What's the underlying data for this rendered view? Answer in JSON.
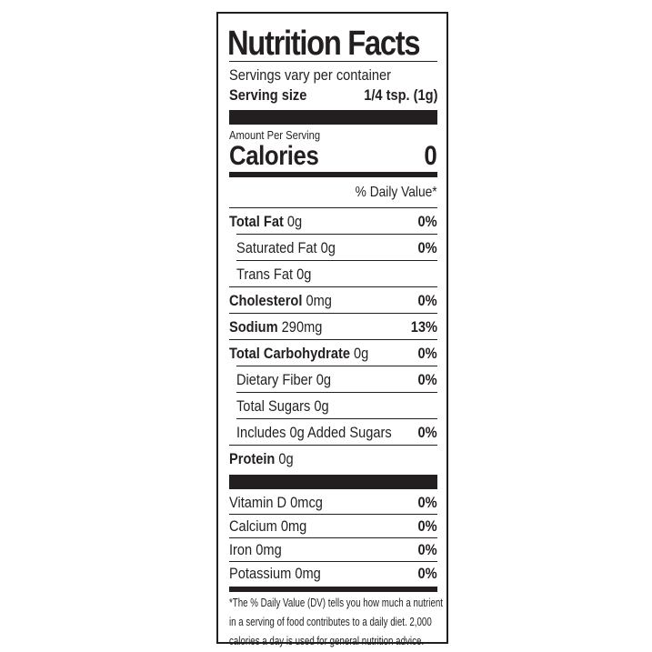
{
  "label": {
    "title": "Nutrition Facts",
    "servings": "Servings vary per container",
    "serving_size_label": "Serving size",
    "serving_size_value": "1/4 tsp. (1g)",
    "amount_per_serving": "Amount Per Serving",
    "calories_label": "Calories",
    "calories_value": "0",
    "daily_value_header": "% Daily Value*",
    "nutrients": [
      {
        "bold": "Total Fat",
        "amount": " 0g",
        "dv": "0%"
      },
      {
        "bold": "",
        "amount": "Saturated Fat 0g",
        "dv": "0%"
      },
      {
        "bold": "",
        "amount": "Trans Fat 0g",
        "dv": ""
      },
      {
        "bold": "Cholesterol",
        "amount": " 0mg",
        "dv": "0%"
      },
      {
        "bold": "Sodium",
        "amount": " 290mg",
        "dv": "13%"
      },
      {
        "bold": "Total Carbohydrate",
        "amount": " 0g",
        "dv": "0%"
      },
      {
        "bold": "",
        "amount": "Dietary Fiber 0g",
        "dv": "0%"
      },
      {
        "bold": "",
        "amount": "Total Sugars 0g",
        "dv": ""
      },
      {
        "bold": "",
        "amount": "Includes 0g Added Sugars",
        "dv": "0%"
      },
      {
        "bold": "Protein",
        "amount": " 0g",
        "dv": ""
      }
    ],
    "vitamins": [
      {
        "name": "Vitamin D 0mcg",
        "dv": "0%"
      },
      {
        "name": "Calcium 0mg",
        "dv": "0%"
      },
      {
        "name": "Iron 0mg",
        "dv": "0%"
      },
      {
        "name": "Potassium 0mg",
        "dv": "0%"
      }
    ],
    "footnote": [
      "*The % Daily Value (DV) tells you how much a nutrient",
      "in a serving of food contributes to a daily diet. 2,000",
      "calories a day is used for general nutrition advice."
    ]
  }
}
